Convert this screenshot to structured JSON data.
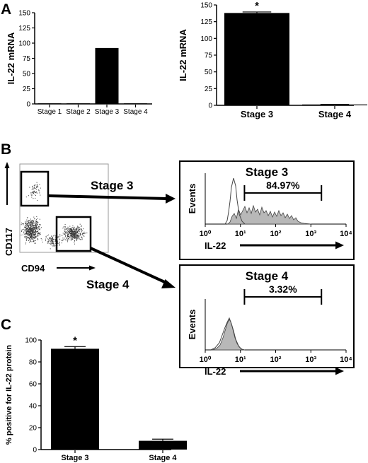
{
  "panel_labels": {
    "a": "A",
    "b": "B",
    "c": "C"
  },
  "chart_data": [
    {
      "type": "bar",
      "panel": "A",
      "categories": [
        "Stage 1",
        "Stage 2",
        "Stage 3",
        "Stage 4"
      ],
      "values": [
        0,
        0,
        92,
        0
      ],
      "ylabel": "IL-22 mRNA",
      "ylim": [
        0,
        150
      ],
      "yticks": [
        0,
        25,
        50,
        75,
        100,
        125,
        150
      ]
    },
    {
      "type": "bar",
      "panel": "A",
      "categories": [
        "Stage 3",
        "Stage 4"
      ],
      "values": [
        138,
        1
      ],
      "errors": [
        1.5,
        0.3
      ],
      "ylabel": "IL-22 mRNA",
      "ylim": [
        0,
        150
      ],
      "yticks": [
        0,
        25,
        50,
        75,
        100,
        125,
        150
      ],
      "annotations": [
        "*"
      ]
    },
    {
      "type": "scatter",
      "panel": "B",
      "xlabel": "CD94",
      "ylabel": "CD117",
      "gates": [
        "Stage 3",
        "Stage 4"
      ]
    },
    {
      "type": "area",
      "panel": "B",
      "title": "Stage 3",
      "xlabel": "IL-22",
      "ylabel": "Events",
      "x_scale": "log",
      "xticks": [
        "10⁰",
        "10¹",
        "10²",
        "10³",
        "10⁴"
      ],
      "marker_range": [
        13,
        2000
      ],
      "marker_label": "84.97%"
    },
    {
      "type": "area",
      "panel": "B",
      "title": "Stage 4",
      "xlabel": "IL-22",
      "ylabel": "Events",
      "x_scale": "log",
      "xticks": [
        "10⁰",
        "10¹",
        "10²",
        "10³",
        "10⁴"
      ],
      "marker_range": [
        13,
        2000
      ],
      "marker_label": "3.32%"
    },
    {
      "type": "bar",
      "panel": "C",
      "categories": [
        "Stage 3",
        "Stage 4"
      ],
      "values": [
        92,
        8
      ],
      "errors": [
        2,
        1.5
      ],
      "ylabel": "% positive for IL-22 protein",
      "ylim": [
        0,
        100
      ],
      "yticks": [
        0,
        20,
        40,
        60,
        80,
        100
      ],
      "annotations": [
        "*"
      ]
    }
  ],
  "flow_labels": {
    "stage3": "Stage 3",
    "stage4": "Stage 4"
  },
  "colors": {
    "bar": "#000000",
    "histogram_fill": "#b8b8b8",
    "dots": "#333333"
  }
}
